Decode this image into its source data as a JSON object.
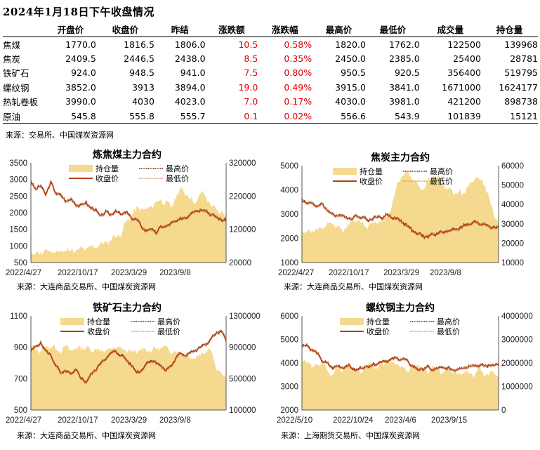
{
  "title": "2024年1月18日下午收盘情况",
  "table": {
    "headers": [
      "",
      "开盘价",
      "收盘价",
      "昨结",
      "涨跌额",
      "涨跌幅",
      "最高价",
      "最低价",
      "成交量",
      "持仓量"
    ],
    "rows": [
      [
        "焦煤",
        "1770.0",
        "1816.5",
        "1806.0",
        "10.5",
        "0.58%",
        "1820.0",
        "1762.0",
        "122500",
        "139968"
      ],
      [
        "焦炭",
        "2409.5",
        "2446.5",
        "2438.0",
        "8.5",
        "0.35%",
        "2450.0",
        "2385.0",
        "25400",
        "28781"
      ],
      [
        "铁矿石",
        "924.0",
        "948.5",
        "941.0",
        "7.5",
        "0.80%",
        "950.5",
        "920.5",
        "356400",
        "519795"
      ],
      [
        "螺纹钢",
        "3852.0",
        "3913",
        "3894.0",
        "19.0",
        "0.49%",
        "3915.0",
        "3841.0",
        "1671000",
        "1624177"
      ],
      [
        "热轧卷板",
        "3990.0",
        "4030",
        "4023.0",
        "7.0",
        "0.17%",
        "4030.0",
        "3981.0",
        "421200",
        "898738"
      ],
      [
        "原油",
        "545.8",
        "555.8",
        "555.7",
        "0.1",
        "0.02%",
        "556.6",
        "543.9",
        "101839",
        "15121"
      ]
    ],
    "source": "来源：交易所、中国煤炭资源网"
  },
  "colors": {
    "area": "#f5d98e",
    "close": "#b7410e",
    "high": "#7a2e10",
    "low": "#e8946a",
    "up": "#e00000"
  },
  "legend": {
    "oi": "持仓量",
    "high": "最高价",
    "close": "收盘价",
    "low": "最低价"
  },
  "chart_data": [
    {
      "type": "line",
      "title": "炼焦煤主力合约",
      "ylim": [
        500,
        3500
      ],
      "y2lim": [
        20000,
        320000
      ],
      "yticks": [
        "3500",
        "3000",
        "2500",
        "2000",
        "1500",
        "1000",
        "500"
      ],
      "y2ticks": [
        "320000",
        "220000",
        "120000",
        "20000"
      ],
      "xticks": [
        "2022/4/27",
        "2022/10/17",
        "2023/3/29",
        "2023/9/8"
      ],
      "source": "来源：大连商品交易所、中国煤炭资源网",
      "close": [
        2950,
        2700,
        2800,
        2550,
        2900,
        2600,
        2500,
        2350,
        2400,
        2250,
        2200,
        2300,
        2150,
        2050,
        1900,
        2000,
        1950,
        2050,
        1950,
        2000,
        1850,
        1800,
        1600,
        1450,
        1500,
        1400,
        1550,
        1600,
        1650,
        1750,
        1800,
        1850,
        2000,
        2050,
        2100,
        2050,
        1950,
        1850,
        1800,
        1750
      ],
      "oi": [
        45000,
        48000,
        50000,
        52000,
        55000,
        52000,
        54000,
        56000,
        58000,
        55000,
        60000,
        62000,
        65000,
        70000,
        75000,
        80000,
        90000,
        100000,
        105000,
        140000,
        160000,
        180000,
        185000,
        175000,
        190000,
        200000,
        210000,
        200000,
        185000,
        220000,
        240000,
        230000,
        210000,
        200000,
        230000,
        220000,
        190000,
        180000,
        170000,
        160000
      ]
    },
    {
      "type": "line",
      "title": "焦炭主力合约",
      "ylim": [
        1000,
        5000
      ],
      "y2lim": [
        10000,
        60000
      ],
      "yticks": [
        "5000",
        "4000",
        "3000",
        "2000",
        "1000"
      ],
      "y2ticks": [
        "60000",
        "50000",
        "40000",
        "30000",
        "20000",
        "10000"
      ],
      "xticks": [
        "2022/4/27",
        "2022/10/17",
        "2023/3/29",
        "2023/9/8"
      ],
      "source": "来源：大连商品交易所、中国煤炭资源网",
      "close": [
        3650,
        3400,
        3500,
        3250,
        3450,
        3150,
        3000,
        2900,
        2950,
        2850,
        2800,
        2950,
        2850,
        2750,
        2800,
        2900,
        2850,
        2950,
        2850,
        2800,
        2650,
        2500,
        2300,
        2150,
        2100,
        2050,
        2150,
        2200,
        2250,
        2300,
        2350,
        2400,
        2500,
        2550,
        2650,
        2600,
        2600,
        2500,
        2450,
        2400
      ],
      "oi": [
        25000,
        26000,
        27000,
        26000,
        28000,
        29000,
        30000,
        28000,
        27000,
        29000,
        31000,
        32000,
        30000,
        29000,
        31000,
        30000,
        32000,
        35000,
        40000,
        52000,
        55000,
        57000,
        53000,
        50000,
        48000,
        52000,
        55000,
        53000,
        50000,
        48000,
        46000,
        47000,
        45000,
        50000,
        52000,
        55000,
        50000,
        45000,
        35000,
        30000
      ]
    },
    {
      "type": "line",
      "title": "铁矿石主力合约",
      "ylim": [
        500,
        1100
      ],
      "y2lim": [
        100000,
        1300000
      ],
      "yticks": [
        "1100",
        "900",
        "700",
        "500"
      ],
      "y2ticks": [
        "1300000",
        "900000",
        "500000",
        "100000"
      ],
      "xticks": [
        "2022/4/27",
        "2022/10/17",
        "2023/3/29",
        "2023/9/8"
      ],
      "source": "来源：大连商品交易所、中国煤炭资源网",
      "close": [
        880,
        900,
        930,
        870,
        850,
        780,
        730,
        750,
        720,
        760,
        700,
        680,
        720,
        760,
        800,
        830,
        860,
        870,
        850,
        820,
        790,
        740,
        750,
        790,
        820,
        800,
        780,
        750,
        780,
        830,
        860,
        850,
        870,
        880,
        900,
        920,
        950,
        990,
        1000,
        940
      ],
      "oi": [
        900000,
        880000,
        860000,
        900000,
        920000,
        880000,
        860000,
        900000,
        870000,
        880000,
        900000,
        890000,
        870000,
        880000,
        860000,
        850000,
        880000,
        900000,
        880000,
        860000,
        850000,
        830000,
        870000,
        880000,
        860000,
        880000,
        900000,
        880000,
        860000,
        840000,
        830000,
        800000,
        780000,
        760000,
        820000,
        860000,
        880000,
        650000,
        550000,
        520000
      ]
    },
    {
      "type": "line",
      "title": "螺纹钢主力合约",
      "ylim": [
        2000,
        6000
      ],
      "y2lim": [
        0,
        4000000
      ],
      "yticks": [
        "6000",
        "5000",
        "4000",
        "3000",
        "2000"
      ],
      "y2ticks": [
        "4000000",
        "3000000",
        "2000000",
        "1000000",
        "0"
      ],
      "xticks": [
        "2022/5/10",
        "2022/10/24",
        "2023/4/6",
        "2023/9/15"
      ],
      "source": "来源：上海期货交易所、中国煤炭资源网",
      "close": [
        4700,
        4750,
        4550,
        4400,
        4100,
        3950,
        3800,
        3850,
        3800,
        3900,
        3750,
        3700,
        3800,
        3850,
        3900,
        4000,
        4050,
        4100,
        4150,
        4200,
        4150,
        4050,
        3850,
        3700,
        3750,
        3800,
        3700,
        3750,
        3800,
        3750,
        3700,
        3750,
        3800,
        3850,
        3900,
        3900,
        3850,
        3900,
        3900,
        3950
      ],
      "oi": [
        2000000,
        2100000,
        1800000,
        1900000,
        2000000,
        1700000,
        1500000,
        1800000,
        1700000,
        1900000,
        1800000,
        1600000,
        1700000,
        1900000,
        2000000,
        1800000,
        1900000,
        2100000,
        2000000,
        1900000,
        1800000,
        1700000,
        1800000,
        1900000,
        1700000,
        1600000,
        1800000,
        1700000,
        1600000,
        1800000,
        1700000,
        1500000,
        1700000,
        1600000,
        1400000,
        1800000,
        1600000,
        1500000,
        1600000,
        1400000
      ]
    }
  ]
}
